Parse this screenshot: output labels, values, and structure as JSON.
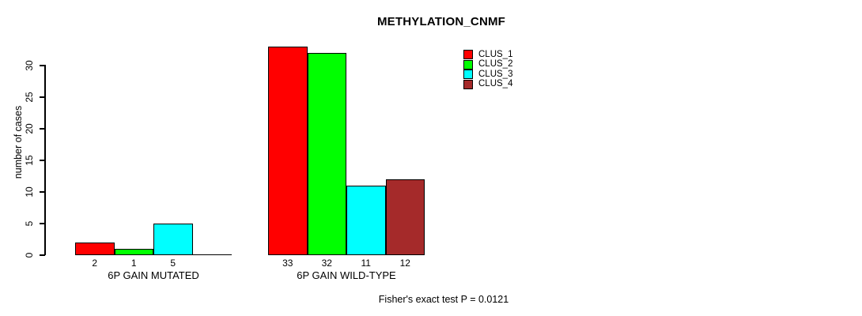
{
  "chart_data": {
    "type": "bar",
    "title": "METHYLATION_CNMF",
    "ylabel": "number of cases",
    "xlabel": "",
    "yticks": [
      0,
      5,
      10,
      15,
      20,
      25,
      30
    ],
    "ylim": [
      0,
      33
    ],
    "grid": false,
    "legend_position": "top-right",
    "categories": [
      "6P GAIN MUTATED",
      "6P GAIN WILD-TYPE"
    ],
    "series": [
      {
        "name": "CLUS_1",
        "color": "#FF0000",
        "values": [
          2,
          33
        ]
      },
      {
        "name": "CLUS_2",
        "color": "#00FF00",
        "values": [
          1,
          32
        ]
      },
      {
        "name": "CLUS_3",
        "color": "#00FFFF",
        "values": [
          5,
          11
        ]
      },
      {
        "name": "CLUS_4",
        "color": "#A52A2A",
        "values": [
          0,
          12
        ]
      }
    ],
    "bar_value_labels": [
      [
        "2",
        "1",
        "5",
        ""
      ],
      [
        "33",
        "32",
        "11",
        "12"
      ]
    ],
    "annotation": "Fisher's exact test P = 0.0121"
  }
}
